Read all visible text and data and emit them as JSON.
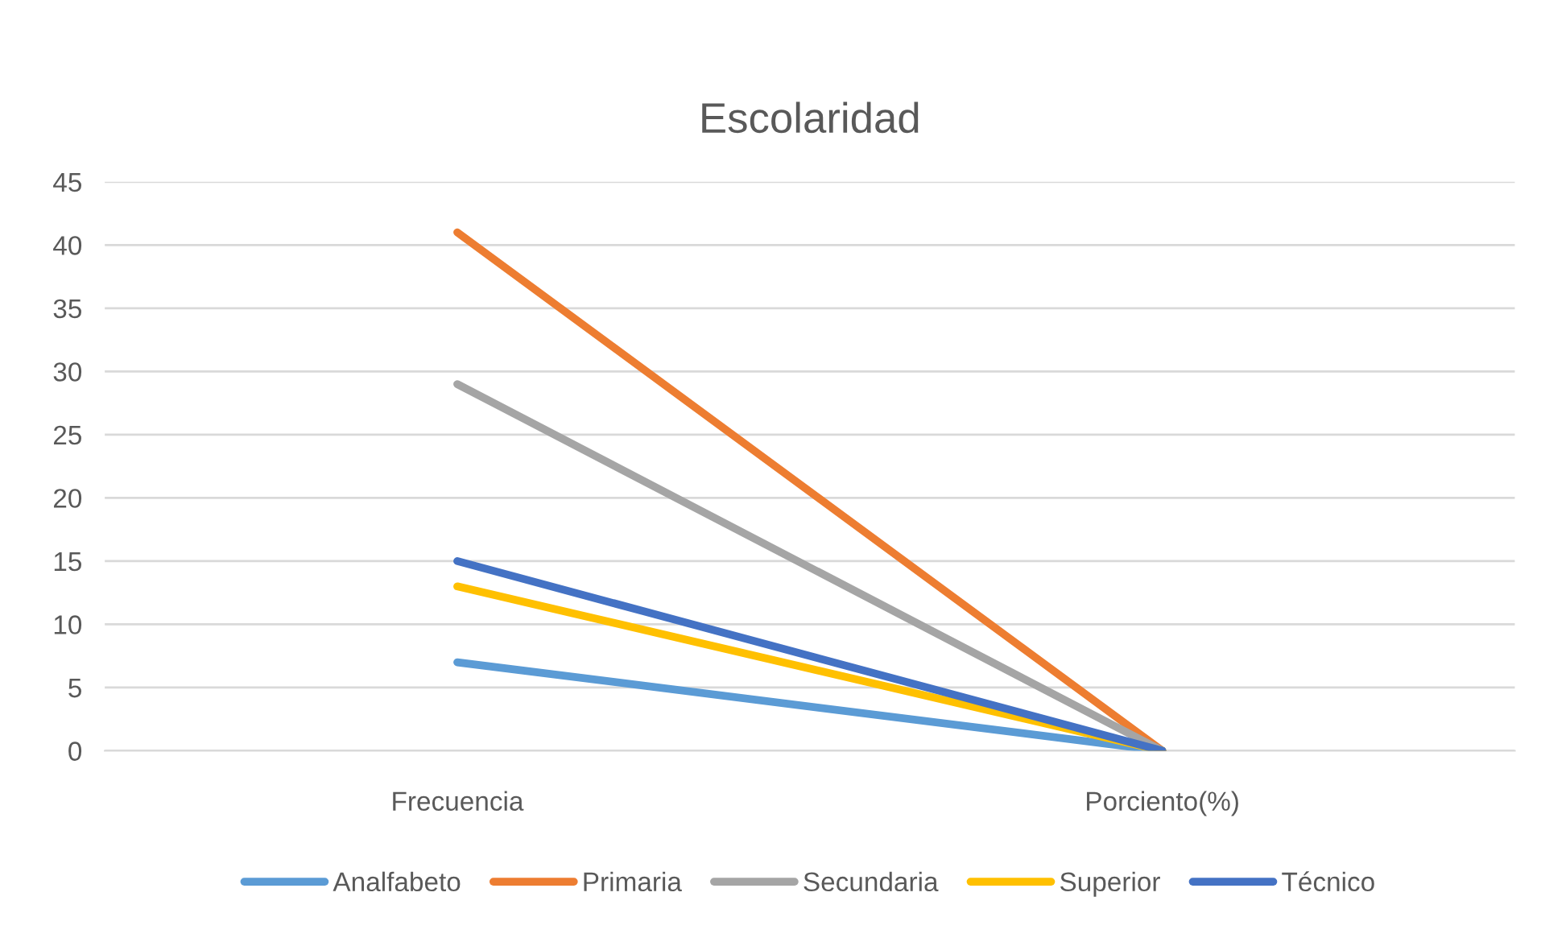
{
  "chart_data": {
    "type": "line",
    "title": "Escolaridad",
    "categories": [
      "Frecuencia",
      "Porciento(%)"
    ],
    "series": [
      {
        "name": "Analfabeto",
        "color": "#5b9bd5",
        "values": [
          7,
          0
        ]
      },
      {
        "name": "Primaria",
        "color": "#ed7d31",
        "values": [
          41,
          0
        ]
      },
      {
        "name": "Secundaria",
        "color": "#a5a5a5",
        "values": [
          29,
          0
        ]
      },
      {
        "name": "Superior",
        "color": "#ffc000",
        "values": [
          13,
          0
        ]
      },
      {
        "name": "Técnico",
        "color": "#4472c4",
        "values": [
          15,
          0
        ]
      }
    ],
    "ylim": [
      0,
      45
    ],
    "yticks": [
      0,
      5,
      10,
      15,
      20,
      25,
      30,
      35,
      40,
      45
    ],
    "grid": "y",
    "legend": "bottom",
    "marker": "none",
    "line_style": "solid"
  }
}
